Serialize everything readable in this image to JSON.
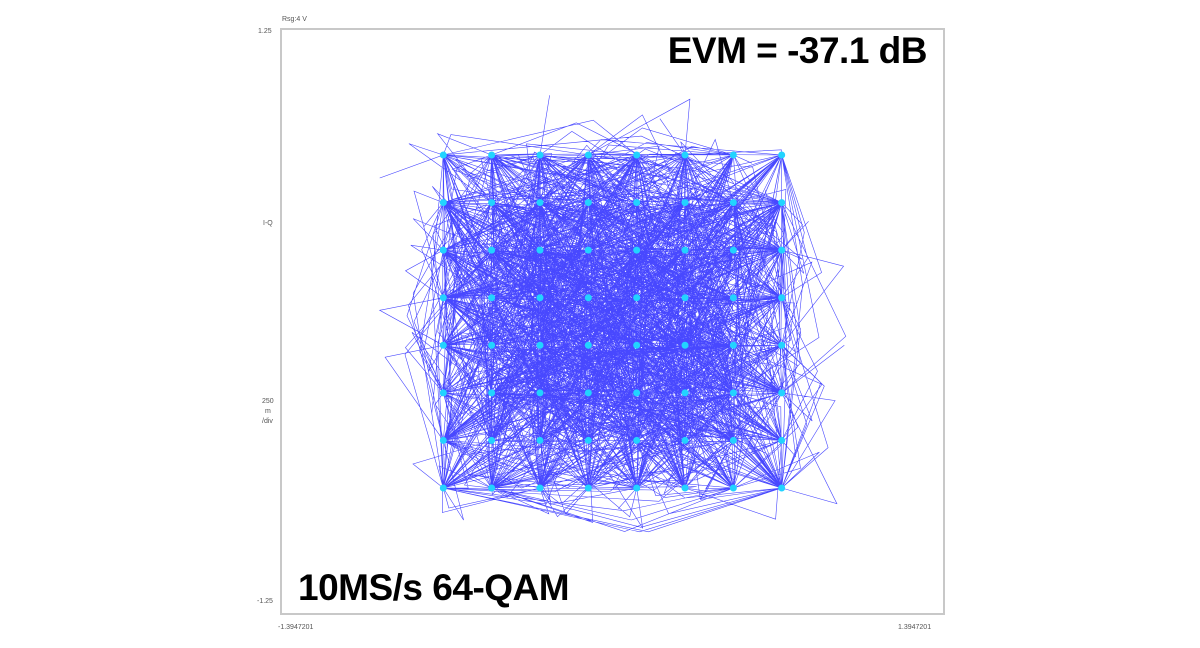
{
  "chart_data": {
    "type": "scatter",
    "title": "",
    "annotations": {
      "evm": "EVM = -37.1 dB",
      "mode": "10MS/s 64-QAM"
    },
    "header_label": "Rsg:4 V",
    "ylabel": "I-Q",
    "yscale_label": [
      "250",
      "m",
      "/div"
    ],
    "ytick_labels": {
      "top": "1.25",
      "bottom": "-1.25"
    },
    "xtick_labels": {
      "left": "-1.3947201",
      "right": "1.3947201"
    },
    "xlim": [
      -1.3947201,
      1.3947201
    ],
    "ylim": [
      -1.25,
      1.25
    ],
    "constellation_levels": [
      -0.714,
      -0.51,
      -0.306,
      -0.102,
      0.102,
      0.306,
      0.51,
      0.714
    ],
    "grid": false,
    "colors": {
      "trajectory": "#1a1aff",
      "symbols": "#22d3ff",
      "frame": "#c8c8c8"
    }
  }
}
